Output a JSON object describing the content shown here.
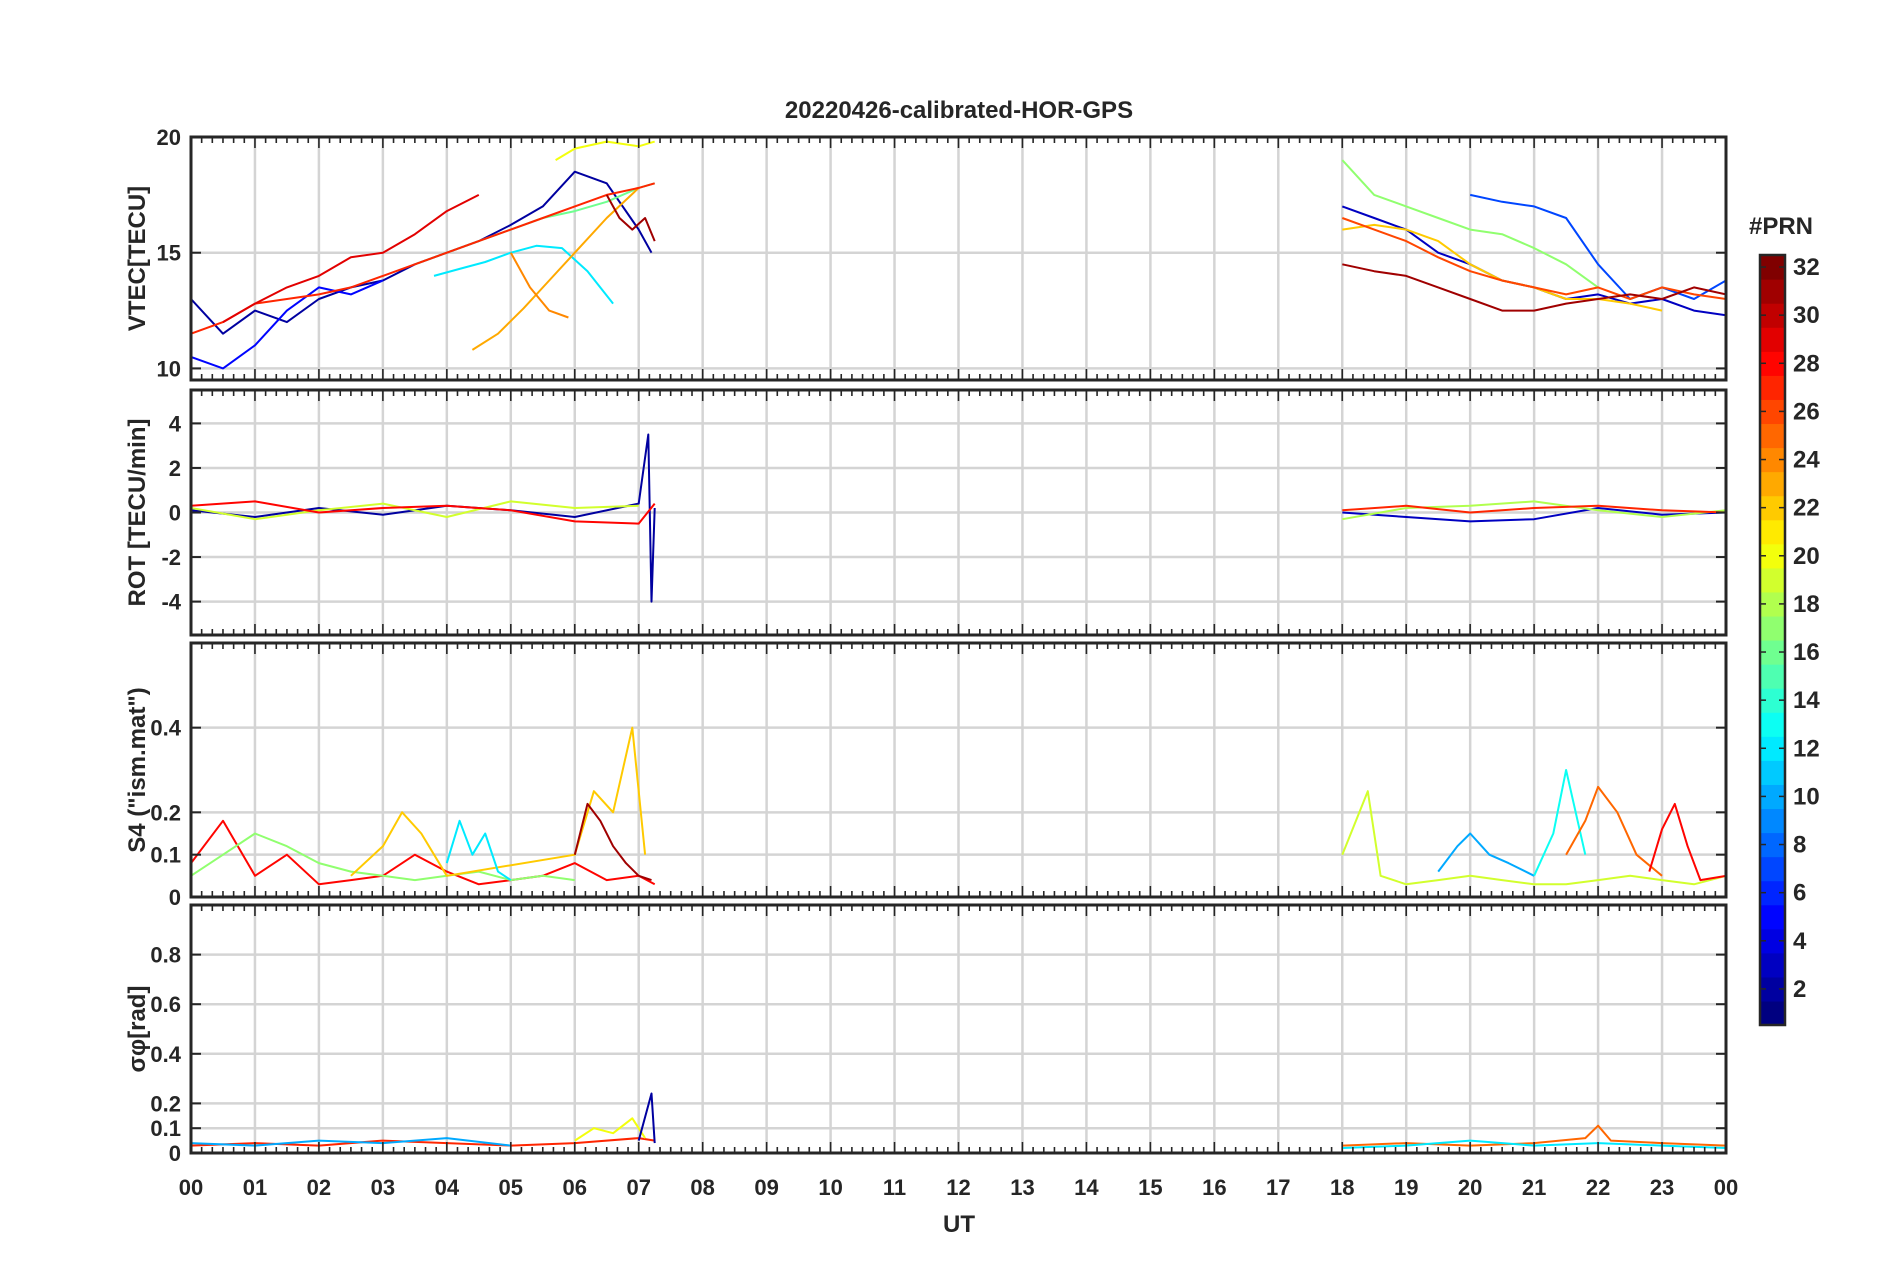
{
  "chart_data": {
    "type": "line",
    "title": "20220426-calibrated-HOR-GPS",
    "xlabel": "UT",
    "x_tick_labels": [
      "00",
      "01",
      "02",
      "03",
      "04",
      "05",
      "06",
      "07",
      "08",
      "09",
      "10",
      "11",
      "12",
      "13",
      "14",
      "15",
      "16",
      "17",
      "18",
      "19",
      "20",
      "21",
      "22",
      "23",
      "00"
    ],
    "xlim_hours": [
      0,
      24
    ],
    "grid": true,
    "colormap": "jet",
    "colorbar": {
      "title": "#PRN",
      "range": [
        1,
        32
      ],
      "tick_labels": [
        "2",
        "4",
        "6",
        "8",
        "10",
        "12",
        "14",
        "16",
        "18",
        "20",
        "22",
        "24",
        "26",
        "28",
        "30",
        "32"
      ],
      "placement": "right"
    },
    "data_coverage_hours": [
      [
        0,
        7.25
      ],
      [
        17.95,
        24
      ]
    ],
    "panels": [
      {
        "ylabel": "VTEC[TECU]",
        "ylim": [
          9.5,
          20
        ],
        "y_ticks": [
          10,
          15,
          20
        ],
        "y_tick_labels": [
          "10",
          "15",
          "20"
        ],
        "series": [
          {
            "prn": 2,
            "x": [
              0,
              0.5,
              1,
              1.5,
              2,
              2.5,
              3,
              3.5,
              4,
              4.5,
              5,
              5.5,
              6,
              6.5,
              7,
              7.2
            ],
            "y": [
              13.0,
              11.5,
              12.5,
              12.0,
              13.0,
              13.5,
              13.8,
              14.5,
              15.0,
              15.5,
              16.2,
              17.0,
              18.5,
              18.0,
              16.0,
              15.0
            ]
          },
          {
            "prn": 5,
            "x": [
              0,
              0.5,
              1,
              1.5,
              2,
              2.5,
              3
            ],
            "y": [
              10.5,
              10.0,
              11.0,
              12.5,
              13.5,
              13.2,
              13.8
            ]
          },
          {
            "prn": 12,
            "x": [
              3.8,
              4.2,
              4.6,
              5.0,
              5.4,
              5.8,
              6.2,
              6.6
            ],
            "y": [
              14.0,
              14.3,
              14.6,
              15.0,
              15.3,
              15.2,
              14.2,
              12.8
            ]
          },
          {
            "prn": 16,
            "x": [
              3.5,
              4.0,
              4.5,
              5.0,
              5.5,
              6.0,
              6.5,
              7.0,
              7.25
            ],
            "y": [
              14.5,
              15.0,
              15.5,
              16.0,
              16.5,
              16.8,
              17.2,
              17.8,
              18.0
            ]
          },
          {
            "prn": 20,
            "x": [
              5.7,
              6.0,
              6.5,
              7.0,
              7.25
            ],
            "y": [
              19.0,
              19.5,
              19.8,
              19.6,
              19.8
            ]
          },
          {
            "prn": 23,
            "x": [
              4.4,
              4.8,
              5.2,
              5.6,
              6.0,
              6.5,
              7.0
            ],
            "y": [
              10.8,
              11.5,
              12.6,
              13.8,
              15.0,
              16.5,
              17.8
            ]
          },
          {
            "prn": 24,
            "x": [
              5.0,
              5.3,
              5.6,
              5.9
            ],
            "y": [
              15.0,
              13.5,
              12.5,
              12.2
            ]
          },
          {
            "prn": 27,
            "x": [
              0,
              0.5,
              1,
              1.5,
              2,
              2.5,
              3,
              3.5,
              4,
              4.5,
              5,
              5.5,
              6,
              6.5,
              7,
              7.25
            ],
            "y": [
              11.5,
              12.0,
              12.8,
              13.0,
              13.2,
              13.5,
              14.0,
              14.5,
              15.0,
              15.5,
              16.0,
              16.5,
              17.0,
              17.5,
              17.8,
              18.0
            ]
          },
          {
            "prn": 29,
            "x": [
              0.5,
              1,
              1.5,
              2,
              2.5,
              3,
              3.5,
              4,
              4.5
            ],
            "y": [
              12.0,
              12.8,
              13.5,
              14.0,
              14.8,
              15.0,
              15.8,
              16.8,
              17.5
            ]
          },
          {
            "prn": 31,
            "x": [
              6.5,
              6.7,
              6.9,
              7.1,
              7.25
            ],
            "y": [
              17.5,
              16.5,
              16.0,
              16.5,
              15.5
            ]
          },
          {
            "prn": 3,
            "x": [
              18,
              18.5,
              19,
              19.5,
              20,
              20.5,
              21,
              21.5,
              22,
              22.5,
              23,
              23.5,
              24
            ],
            "y": [
              17.0,
              16.5,
              16.0,
              15.0,
              14.5,
              13.8,
              13.5,
              13.0,
              13.2,
              12.8,
              13.0,
              12.5,
              12.3
            ]
          },
          {
            "prn": 7,
            "x": [
              20,
              20.5,
              21,
              21.5,
              22,
              22.5,
              23,
              23.5,
              24
            ],
            "y": [
              17.5,
              17.2,
              17.0,
              16.5,
              14.5,
              13.0,
              13.5,
              13.0,
              13.8
            ]
          },
          {
            "prn": 17,
            "x": [
              18,
              18.5,
              19,
              19.5,
              20,
              20.5,
              21,
              21.5,
              22
            ],
            "y": [
              19.0,
              17.5,
              17.0,
              16.5,
              16.0,
              15.8,
              15.2,
              14.5,
              13.5
            ]
          },
          {
            "prn": 22,
            "x": [
              18,
              18.5,
              19,
              19.5,
              20,
              20.5,
              21,
              21.5,
              22,
              22.5,
              23
            ],
            "y": [
              16.0,
              16.2,
              16.0,
              15.5,
              14.5,
              13.8,
              13.5,
              13.0,
              13.0,
              12.8,
              12.5
            ]
          },
          {
            "prn": 26,
            "x": [
              18,
              18.5,
              19,
              19.5,
              20,
              20.5,
              21,
              21.5,
              22,
              22.5,
              23,
              23.5,
              24
            ],
            "y": [
              16.5,
              16.0,
              15.5,
              14.8,
              14.2,
              13.8,
              13.5,
              13.2,
              13.5,
              13.0,
              13.5,
              13.2,
              13.0
            ]
          },
          {
            "prn": 31,
            "x": [
              18,
              18.5,
              19,
              19.5,
              20,
              20.5,
              21,
              21.5,
              22,
              22.5,
              23,
              23.5,
              24
            ],
            "y": [
              14.5,
              14.2,
              14.0,
              13.5,
              13.0,
              12.5,
              12.5,
              12.8,
              13.0,
              13.2,
              13.0,
              13.5,
              13.2
            ]
          }
        ]
      },
      {
        "ylabel": "ROT [TECU/min]",
        "ylim": [
          -5.5,
          5.5
        ],
        "y_ticks": [
          -4,
          -2,
          0,
          2,
          4
        ],
        "y_tick_labels": [
          "-4",
          "-2",
          "0",
          "2",
          "4"
        ],
        "series": [
          {
            "prn": 2,
            "x": [
              0,
              1,
              2,
              3,
              4,
              5,
              6,
              7,
              7.15,
              7.2,
              7.25
            ],
            "y": [
              0.1,
              -0.2,
              0.2,
              -0.1,
              0.3,
              0.1,
              -0.2,
              0.4,
              3.5,
              -4.0,
              0.2
            ]
          },
          {
            "prn": 19,
            "x": [
              0,
              1,
              2,
              3,
              4,
              5,
              6,
              7
            ],
            "y": [
              0.2,
              -0.3,
              0.1,
              0.4,
              -0.2,
              0.5,
              0.2,
              0.3
            ]
          },
          {
            "prn": 28,
            "x": [
              0,
              1,
              2,
              3,
              4,
              5,
              6,
              7,
              7.25
            ],
            "y": [
              0.3,
              0.5,
              0.0,
              0.2,
              0.3,
              0.1,
              -0.4,
              -0.5,
              0.4
            ]
          },
          {
            "prn": 3,
            "x": [
              18,
              19,
              20,
              21,
              22,
              23,
              24
            ],
            "y": [
              0.0,
              -0.2,
              -0.4,
              -0.3,
              0.2,
              -0.1,
              0.0
            ]
          },
          {
            "prn": 18,
            "x": [
              18,
              19,
              20,
              21,
              22,
              23,
              24
            ],
            "y": [
              -0.3,
              0.2,
              0.3,
              0.5,
              0.1,
              -0.2,
              0.1
            ]
          },
          {
            "prn": 27,
            "x": [
              18,
              19,
              20,
              21,
              22,
              23,
              24
            ],
            "y": [
              0.1,
              0.3,
              0.0,
              0.2,
              0.3,
              0.1,
              0.0
            ]
          }
        ]
      },
      {
        "ylabel": "S4 (\"ism.mat\")",
        "ylim": [
          0,
          0.6
        ],
        "y_ticks": [
          0,
          0.1,
          0.2,
          0.4
        ],
        "y_tick_labels": [
          "0",
          "0.1",
          "0.2",
          "0.4"
        ],
        "series": [
          {
            "prn": 28,
            "x": [
              0,
              0.5,
              1,
              1.5,
              2,
              2.5,
              3,
              3.5,
              4,
              4.5,
              5,
              5.5,
              6,
              6.5,
              7,
              7.25
            ],
            "y": [
              0.08,
              0.18,
              0.05,
              0.1,
              0.03,
              0.04,
              0.05,
              0.1,
              0.06,
              0.03,
              0.04,
              0.05,
              0.08,
              0.04,
              0.05,
              0.03
            ]
          },
          {
            "prn": 17,
            "x": [
              0,
              0.5,
              1,
              1.5,
              2,
              2.5,
              3,
              3.5,
              4,
              4.5,
              5,
              5.5,
              6
            ],
            "y": [
              0.05,
              0.1,
              0.15,
              0.12,
              0.08,
              0.06,
              0.05,
              0.04,
              0.05,
              0.06,
              0.04,
              0.05,
              0.04
            ]
          },
          {
            "prn": 22,
            "x": [
              2.5,
              3.0,
              3.3,
              3.6,
              4.0,
              6.0,
              6.3,
              6.6,
              6.9,
              7.1
            ],
            "y": [
              0.05,
              0.12,
              0.2,
              0.15,
              0.05,
              0.1,
              0.25,
              0.2,
              0.4,
              0.1
            ]
          },
          {
            "prn": 12,
            "x": [
              4,
              4.2,
              4.4,
              4.6,
              4.8,
              5.0
            ],
            "y": [
              0.08,
              0.18,
              0.1,
              0.15,
              0.06,
              0.04
            ]
          },
          {
            "prn": 31,
            "x": [
              6.0,
              6.2,
              6.4,
              6.6,
              6.8,
              7.0,
              7.2
            ],
            "y": [
              0.1,
              0.22,
              0.18,
              0.12,
              0.08,
              0.05,
              0.04
            ]
          },
          {
            "prn": 19,
            "x": [
              18,
              18.4,
              18.6,
              19,
              19.5,
              20,
              20.5,
              21,
              21.5,
              22,
              22.5,
              23,
              23.5,
              24
            ],
            "y": [
              0.1,
              0.25,
              0.05,
              0.03,
              0.04,
              0.05,
              0.04,
              0.03,
              0.03,
              0.04,
              0.05,
              0.04,
              0.03,
              0.05
            ]
          },
          {
            "prn": 10,
            "x": [
              19.5,
              19.8,
              20.0,
              20.3,
              20.6,
              21.0
            ],
            "y": [
              0.06,
              0.12,
              0.15,
              0.1,
              0.08,
              0.05
            ]
          },
          {
            "prn": 13,
            "x": [
              21.0,
              21.3,
              21.5,
              21.8
            ],
            "y": [
              0.05,
              0.15,
              0.3,
              0.1
            ]
          },
          {
            "prn": 25,
            "x": [
              21.5,
              21.8,
              22.0,
              22.3,
              22.6,
              23.0
            ],
            "y": [
              0.1,
              0.18,
              0.26,
              0.2,
              0.1,
              0.05
            ]
          },
          {
            "prn": 28,
            "x": [
              22.8,
              23.0,
              23.2,
              23.4,
              23.6,
              24.0
            ],
            "y": [
              0.06,
              0.16,
              0.22,
              0.12,
              0.04,
              0.05
            ]
          }
        ]
      },
      {
        "ylabel": "σφ[rad]",
        "ylim": [
          0,
          1
        ],
        "y_ticks": [
          0,
          0.1,
          0.2,
          0.4,
          0.6,
          0.8
        ],
        "y_tick_labels": [
          "0",
          "0.1",
          "0.2",
          "0.4",
          "0.6",
          "0.8"
        ],
        "series": [
          {
            "prn": 27,
            "x": [
              0,
              1,
              2,
              3,
              4,
              5,
              6,
              7,
              7.25
            ],
            "y": [
              0.03,
              0.04,
              0.03,
              0.05,
              0.04,
              0.03,
              0.04,
              0.06,
              0.05
            ]
          },
          {
            "prn": 20,
            "x": [
              6.0,
              6.3,
              6.6,
              6.9,
              7.1
            ],
            "y": [
              0.05,
              0.1,
              0.08,
              0.14,
              0.06
            ]
          },
          {
            "prn": 2,
            "x": [
              7.0,
              7.2,
              7.25
            ],
            "y": [
              0.05,
              0.24,
              0.04
            ]
          },
          {
            "prn": 10,
            "x": [
              0,
              1,
              2,
              3,
              4,
              5
            ],
            "y": [
              0.04,
              0.03,
              0.05,
              0.04,
              0.06,
              0.03
            ]
          },
          {
            "prn": 25,
            "x": [
              18,
              19,
              20,
              21,
              21.8,
              22,
              22.2,
              23,
              24
            ],
            "y": [
              0.03,
              0.04,
              0.03,
              0.04,
              0.06,
              0.11,
              0.05,
              0.04,
              0.03
            ]
          },
          {
            "prn": 12,
            "x": [
              18,
              19,
              20,
              21,
              22,
              23,
              24
            ],
            "y": [
              0.02,
              0.03,
              0.05,
              0.03,
              0.04,
              0.03,
              0.02
            ]
          }
        ]
      }
    ]
  }
}
